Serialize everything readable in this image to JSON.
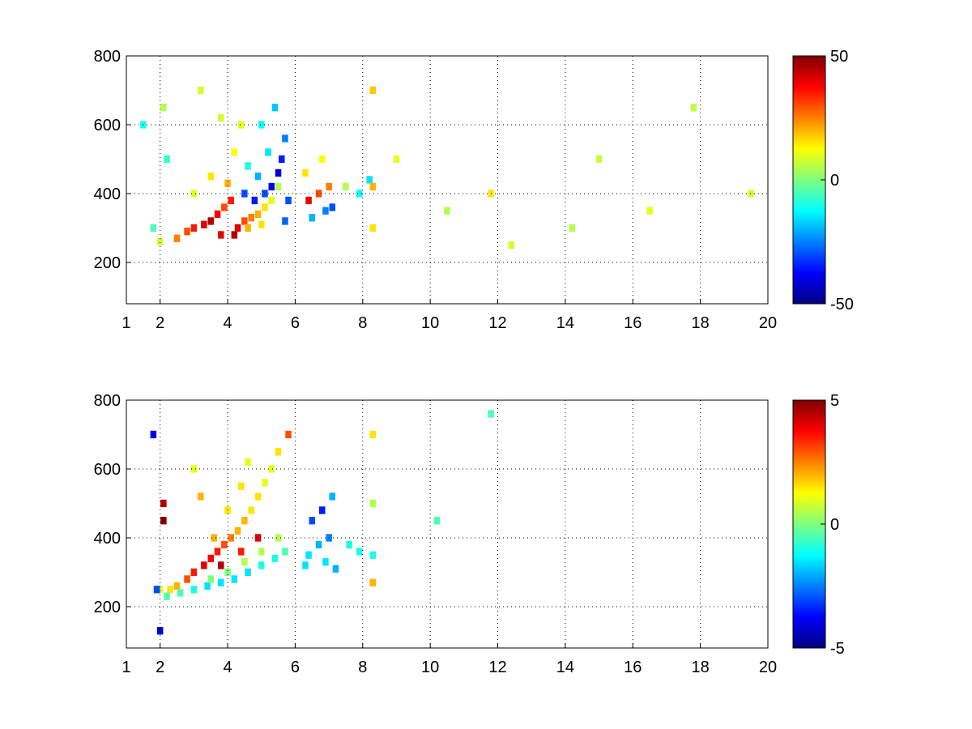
{
  "figure": {
    "background": "#ffffff",
    "axis_color": "#000000",
    "grid_style": "dotted",
    "colormap": "jet",
    "colormap_stops": [
      "#00007f",
      "#0000ff",
      "#007fff",
      "#00ffff",
      "#7fff7f",
      "#ffff00",
      "#ff7f00",
      "#ff0000",
      "#7f0000"
    ]
  },
  "chart_data": [
    {
      "type": "heatmap",
      "title": "",
      "xlabel": "",
      "ylabel": "",
      "xlim": [
        1,
        20
      ],
      "ylim": [
        80,
        800
      ],
      "xticks": [
        1,
        2,
        4,
        6,
        8,
        10,
        12,
        14,
        16,
        18,
        20
      ],
      "yticks": [
        200,
        400,
        600,
        800
      ],
      "grid": true,
      "colorbar": {
        "position": "right",
        "min": -50,
        "max": 50,
        "ticks": [
          50,
          0,
          -50
        ]
      },
      "cells": [
        [
          2.0,
          260,
          8
        ],
        [
          2.5,
          270,
          25
        ],
        [
          2.8,
          290,
          30
        ],
        [
          3.0,
          300,
          35
        ],
        [
          3.3,
          310,
          40
        ],
        [
          3.5,
          320,
          45
        ],
        [
          3.7,
          340,
          38
        ],
        [
          3.9,
          360,
          30
        ],
        [
          4.1,
          380,
          35
        ],
        [
          4.3,
          300,
          40
        ],
        [
          4.5,
          320,
          30
        ],
        [
          4.7,
          330,
          25
        ],
        [
          4.9,
          340,
          20
        ],
        [
          5.1,
          360,
          15
        ],
        [
          5.3,
          380,
          10
        ],
        [
          5.5,
          420,
          5
        ],
        [
          3.8,
          280,
          40
        ],
        [
          4.2,
          280,
          45
        ],
        [
          4.6,
          300,
          20
        ],
        [
          5.0,
          310,
          15
        ],
        [
          4.0,
          430,
          20
        ],
        [
          4.5,
          400,
          -30
        ],
        [
          4.8,
          380,
          -35
        ],
        [
          5.1,
          400,
          -30
        ],
        [
          5.3,
          420,
          -38
        ],
        [
          5.5,
          460,
          -42
        ],
        [
          5.6,
          500,
          -35
        ],
        [
          5.7,
          560,
          -25
        ],
        [
          5.8,
          380,
          -30
        ],
        [
          5.7,
          320,
          -28
        ],
        [
          4.9,
          450,
          -20
        ],
        [
          5.2,
          520,
          -15
        ],
        [
          4.6,
          480,
          -10
        ],
        [
          5.0,
          600,
          -12
        ],
        [
          5.4,
          650,
          -18
        ],
        [
          3.5,
          450,
          15
        ],
        [
          3.0,
          400,
          10
        ],
        [
          4.2,
          520,
          12
        ],
        [
          4.4,
          600,
          10
        ],
        [
          3.8,
          620,
          8
        ],
        [
          6.4,
          380,
          40
        ],
        [
          6.7,
          400,
          30
        ],
        [
          7.0,
          420,
          25
        ],
        [
          6.5,
          330,
          -20
        ],
        [
          6.9,
          350,
          -25
        ],
        [
          7.1,
          360,
          -30
        ],
        [
          6.3,
          460,
          15
        ],
        [
          6.8,
          500,
          12
        ],
        [
          7.5,
          420,
          5
        ],
        [
          7.9,
          400,
          -12
        ],
        [
          8.2,
          440,
          -15
        ],
        [
          8.3,
          420,
          20
        ],
        [
          8.3,
          700,
          18
        ],
        [
          8.3,
          300,
          15
        ],
        [
          2.2,
          500,
          -8
        ],
        [
          1.5,
          600,
          -10
        ],
        [
          1.8,
          300,
          -5
        ],
        [
          2.1,
          650,
          5
        ],
        [
          3.2,
          700,
          8
        ],
        [
          9.0,
          500,
          10
        ],
        [
          10.5,
          350,
          5
        ],
        [
          11.8,
          400,
          15
        ],
        [
          12.4,
          250,
          8
        ],
        [
          14.2,
          300,
          5
        ],
        [
          15.0,
          500,
          7
        ],
        [
          16.5,
          350,
          10
        ],
        [
          17.8,
          650,
          6
        ],
        [
          19.5,
          400,
          8
        ]
      ]
    },
    {
      "type": "heatmap",
      "title": "",
      "xlabel": "",
      "ylabel": "",
      "xlim": [
        1,
        20
      ],
      "ylim": [
        80,
        800
      ],
      "xticks": [
        1,
        2,
        4,
        6,
        8,
        10,
        12,
        14,
        16,
        18,
        20
      ],
      "yticks": [
        200,
        400,
        600,
        800
      ],
      "grid": true,
      "colorbar": {
        "position": "right",
        "min": -5,
        "max": 5,
        "ticks": [
          5,
          0,
          -5
        ]
      },
      "cells": [
        [
          2.0,
          250,
          1
        ],
        [
          2.3,
          250,
          1.5
        ],
        [
          2.5,
          260,
          2
        ],
        [
          2.8,
          280,
          3
        ],
        [
          3.0,
          300,
          3.5
        ],
        [
          3.3,
          320,
          4
        ],
        [
          3.5,
          340,
          3.8
        ],
        [
          3.7,
          360,
          3.5
        ],
        [
          3.9,
          380,
          3
        ],
        [
          4.1,
          400,
          2.5
        ],
        [
          4.3,
          420,
          2
        ],
        [
          4.5,
          450,
          2
        ],
        [
          4.7,
          480,
          1.5
        ],
        [
          4.9,
          520,
          1.5
        ],
        [
          5.1,
          560,
          1
        ],
        [
          5.3,
          600,
          1
        ],
        [
          5.5,
          650,
          1.5
        ],
        [
          3.6,
          400,
          2
        ],
        [
          4.0,
          480,
          1.5
        ],
        [
          4.4,
          550,
          1.5
        ],
        [
          4.6,
          620,
          1
        ],
        [
          3.8,
          320,
          4.5
        ],
        [
          4.4,
          360,
          3.5
        ],
        [
          4.9,
          400,
          4
        ],
        [
          2.2,
          230,
          -0.5
        ],
        [
          2.6,
          240,
          -0.5
        ],
        [
          3.0,
          250,
          -1
        ],
        [
          3.4,
          260,
          -1.5
        ],
        [
          3.8,
          270,
          -1.5
        ],
        [
          4.2,
          280,
          -1.5
        ],
        [
          4.6,
          300,
          -1.5
        ],
        [
          5.0,
          320,
          -1
        ],
        [
          5.4,
          340,
          -1
        ],
        [
          5.7,
          360,
          -0.5
        ],
        [
          3.5,
          280,
          0
        ],
        [
          4.0,
          300,
          0
        ],
        [
          4.5,
          330,
          0.5
        ],
        [
          5.0,
          360,
          0.5
        ],
        [
          5.5,
          400,
          0.5
        ],
        [
          6.4,
          350,
          -1.5
        ],
        [
          6.7,
          380,
          -2
        ],
        [
          7.0,
          400,
          -2.5
        ],
        [
          6.5,
          450,
          -3
        ],
        [
          6.8,
          480,
          -3.5
        ],
        [
          7.1,
          520,
          -2
        ],
        [
          6.3,
          320,
          -1.5
        ],
        [
          6.9,
          330,
          -1.5
        ],
        [
          7.2,
          310,
          -2
        ],
        [
          7.6,
          380,
          -1
        ],
        [
          7.9,
          360,
          -1
        ],
        [
          8.3,
          700,
          1.5
        ],
        [
          8.3,
          500,
          0.5
        ],
        [
          8.3,
          350,
          -1
        ],
        [
          8.3,
          270,
          2
        ],
        [
          2.1,
          450,
          5
        ],
        [
          2.1,
          500,
          4.5
        ],
        [
          1.8,
          700,
          -4
        ],
        [
          1.9,
          250,
          -3
        ],
        [
          2.0,
          130,
          -4
        ],
        [
          3.0,
          600,
          1
        ],
        [
          3.2,
          520,
          2
        ],
        [
          5.8,
          700,
          3
        ],
        [
          10.2,
          450,
          -0.5
        ],
        [
          11.8,
          760,
          -0.5
        ]
      ]
    }
  ]
}
